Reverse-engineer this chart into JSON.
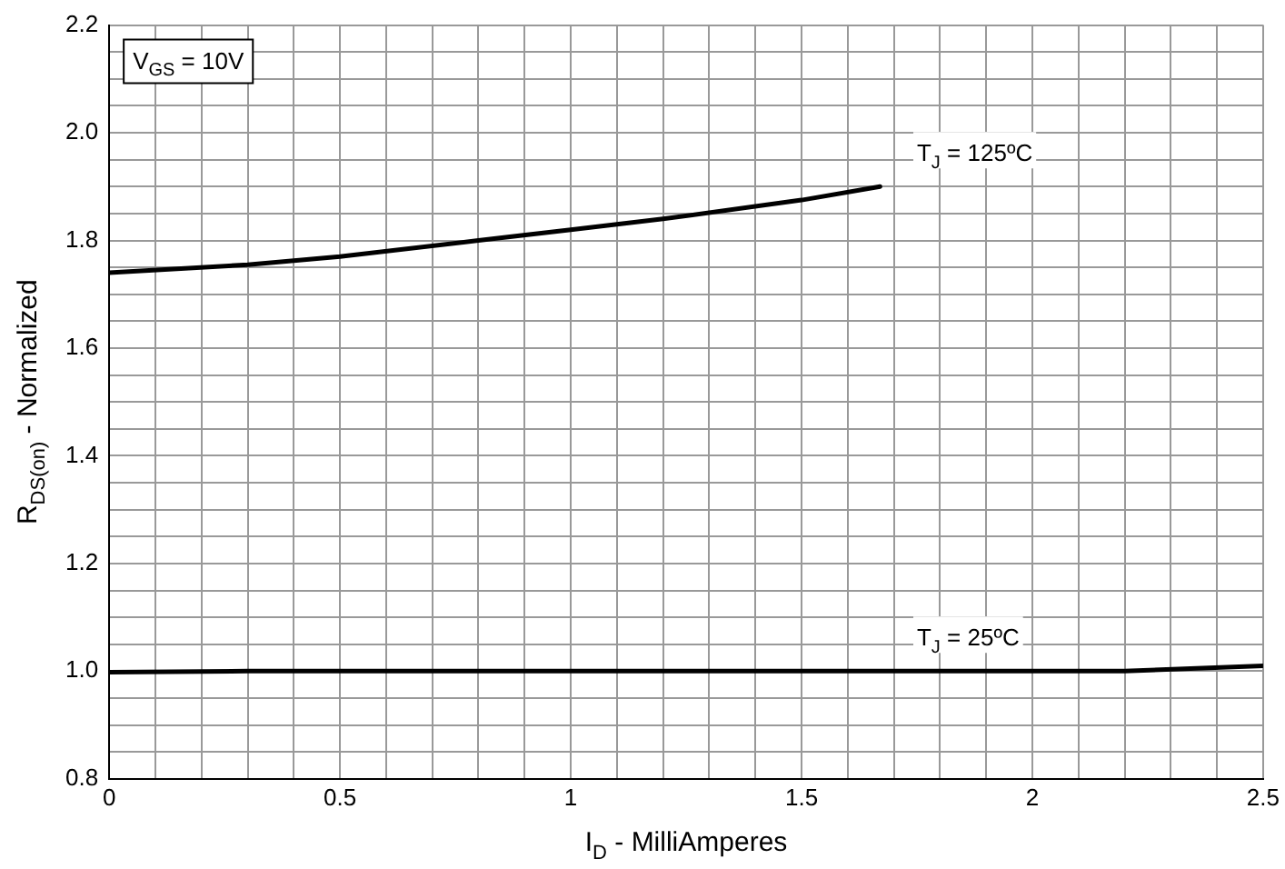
{
  "chart_data": {
    "type": "line",
    "xlabel": "I$_{D}$ - MilliAmperes",
    "ylabel": "R$_{DS(on)}$ - Normalized",
    "annotations": [
      "V$_{GS}$ = 10V"
    ],
    "xlim": [
      0,
      2.5
    ],
    "xticks": [
      0,
      {
        "value": 0.1,
        "label": null
      },
      {
        "value": 0.2,
        "label": null
      },
      {
        "value": 0.3,
        "label": null
      },
      {
        "value": 0.4,
        "label": null
      },
      0.5,
      {
        "value": 0.6,
        "label": null
      },
      {
        "value": 0.7,
        "label": null
      },
      {
        "value": 0.8,
        "label": null
      },
      {
        "value": 0.9,
        "label": null
      },
      1,
      {
        "value": 1.1,
        "label": null
      },
      {
        "value": 1.2,
        "label": null
      },
      {
        "value": 1.3,
        "label": null
      },
      {
        "value": 1.4,
        "label": null
      },
      1.5,
      {
        "value": 1.6,
        "label": null
      },
      {
        "value": 1.7,
        "label": null
      },
      {
        "value": 1.8,
        "label": null
      },
      {
        "value": 1.9,
        "label": null
      },
      2,
      {
        "value": 2.1,
        "label": null
      },
      {
        "value": 2.2,
        "label": null
      },
      {
        "value": 2.3,
        "label": null
      },
      {
        "value": 2.4,
        "label": null
      },
      2.5
    ],
    "ylim": [
      0.8,
      2.2
    ],
    "yticks": [
      {
        "value": 0.8,
        "label": "0.8"
      },
      {
        "value": 0.85,
        "label": null
      },
      {
        "value": 0.9,
        "label": null
      },
      {
        "value": 0.95,
        "label": null
      },
      {
        "value": 1,
        "label": "1.0"
      },
      {
        "value": 1.05,
        "label": null
      },
      {
        "value": 1.1,
        "label": null
      },
      {
        "value": 1.15,
        "label": null
      },
      {
        "value": 1.2,
        "label": "1.2"
      },
      {
        "value": 1.25,
        "label": null
      },
      {
        "value": 1.3,
        "label": null
      },
      {
        "value": 1.35,
        "label": null
      },
      {
        "value": 1.4,
        "label": "1.4"
      },
      {
        "value": 1.45,
        "label": null
      },
      {
        "value": 1.5,
        "label": null
      },
      {
        "value": 1.55,
        "label": null
      },
      {
        "value": 1.6,
        "label": "1.6"
      },
      {
        "value": 1.65,
        "label": null
      },
      {
        "value": 1.7,
        "label": null
      },
      {
        "value": 1.75,
        "label": null
      },
      {
        "value": 1.8,
        "label": "1.8"
      },
      {
        "value": 1.85,
        "label": null
      },
      {
        "value": 1.9,
        "label": null
      },
      {
        "value": 1.95,
        "label": null
      },
      {
        "value": 2,
        "label": "2.0"
      },
      {
        "value": 2.05,
        "label": null
      },
      {
        "value": 2.1,
        "label": null
      },
      {
        "value": 2.15,
        "label": null
      },
      {
        "value": 2.2,
        "label": "2.2"
      }
    ],
    "grid": true,
    "legend": false,
    "marker": "none",
    "line_style": "solid",
    "series": [
      {
        "name": "T$_{J}$ = 125ºC",
        "color": "#000000",
        "x": [
          0,
          0.3,
          0.5,
          0.8,
          1.0,
          1.2,
          1.5,
          1.67
        ],
        "values": [
          1.74,
          1.755,
          1.77,
          1.8,
          1.82,
          1.84,
          1.875,
          1.9
        ]
      },
      {
        "name": "T$_{J}$ = 25ºC",
        "color": "#000000",
        "x": [
          0,
          0.3,
          1.0,
          2.2,
          2.5
        ],
        "values": [
          0.998,
          1.0,
          1.0,
          1.0,
          1.01
        ]
      }
    ]
  }
}
